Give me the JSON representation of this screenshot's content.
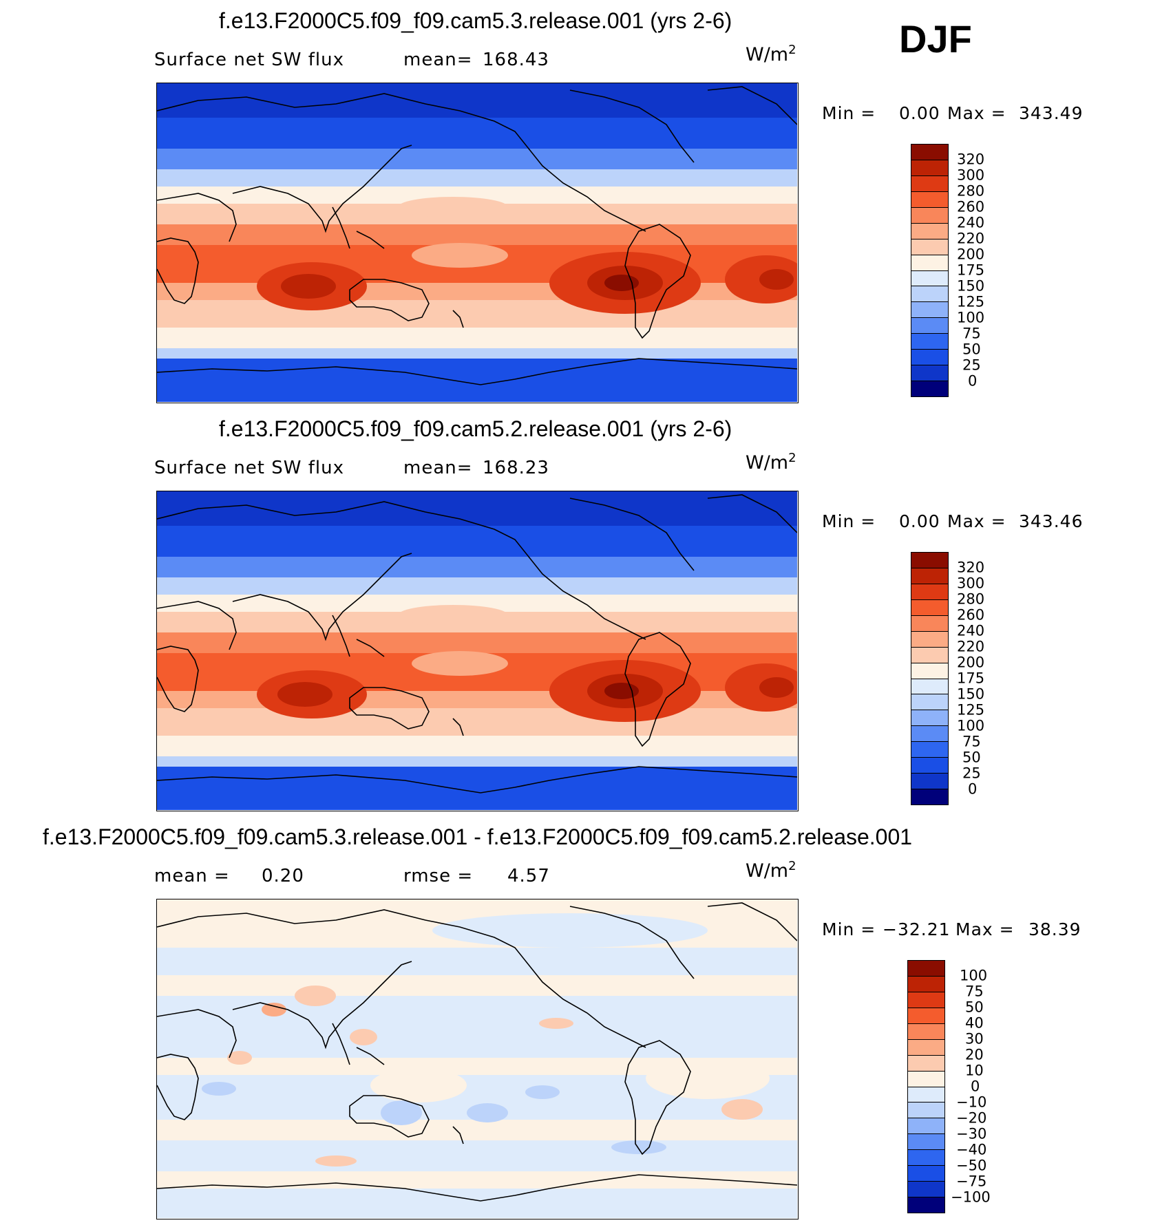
{
  "season": "DJF",
  "colors": {
    "abs_scale": [
      "#00007a",
      "#0a1f9e",
      "#0f36c9",
      "#1a4fe6",
      "#2e66f0",
      "#5b8bf5",
      "#8eb2f9",
      "#bcd3fa",
      "#deebfb",
      "#fdf2e4",
      "#fccbb0",
      "#fbab85",
      "#f9865a",
      "#f45c2d",
      "#de3a14",
      "#bd2305",
      "#8a0d00"
    ],
    "diff_scale": [
      "#00007a",
      "#0a1f9e",
      "#0f36c9",
      "#1a4fe6",
      "#2e66f0",
      "#5b8bf5",
      "#8eb2f9",
      "#bcd3fa",
      "#deebfb",
      "#fdf2e4",
      "#fccbb0",
      "#fbab85",
      "#f9865a",
      "#f45c2d",
      "#de3a14",
      "#bd2305",
      "#8a0d00"
    ],
    "land_outline": "#000000"
  },
  "panels": [
    {
      "title": "f.e13.F2000C5.f09_f09.cam5.3.release.001 (yrs 2-6)",
      "left_label": "Surface net SW flux",
      "stat_label": "mean=",
      "stat_value": "168.43",
      "units": "W/m",
      "units_exp": "2",
      "min_label": "Min =",
      "min_value": "0.00",
      "max_label": "Max =",
      "max_value": "343.49"
    },
    {
      "title": "f.e13.F2000C5.f09_f09.cam5.2.release.001 (yrs 2-6)",
      "left_label": "Surface net SW flux",
      "stat_label": "mean=",
      "stat_value": "168.23",
      "units": "W/m",
      "units_exp": "2",
      "min_label": "Min =",
      "min_value": "0.00",
      "max_label": "Max =",
      "max_value": "343.46"
    },
    {
      "title": "f.e13.F2000C5.f09_f09.cam5.3.release.001 - f.e13.F2000C5.f09_f09.cam5.2.release.001",
      "left_label": "mean =",
      "left_value": "0.20",
      "stat_label": "rmse =",
      "stat_value": "4.57",
      "units": "W/m",
      "units_exp": "2",
      "min_label": "Min =",
      "min_value": "−32.21",
      "max_label": "Max =",
      "max_value": "38.39"
    }
  ],
  "colorbar_abs_ticks": [
    "320",
    "300",
    "280",
    "260",
    "240",
    "220",
    "200",
    "175",
    "150",
    "125",
    "100",
    "75",
    "50",
    "25",
    "0"
  ],
  "colorbar_diff_ticks": [
    "100",
    "75",
    "50",
    "40",
    "30",
    "20",
    "10",
    "0",
    "−10",
    "−20",
    "−30",
    "−40",
    "−50",
    "−75",
    "−100"
  ]
}
